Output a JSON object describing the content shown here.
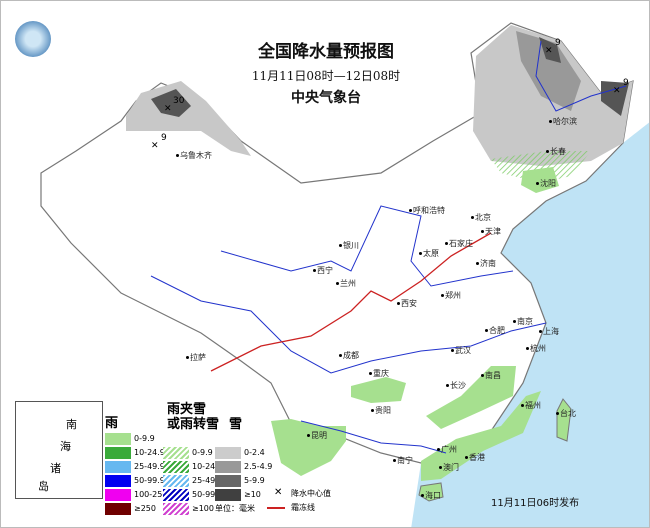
{
  "header": {
    "title": "全国降水量预报图",
    "period": "11月11日08时—12日08时",
    "issuer": "中央气象台",
    "logo": "cma-logo-icon"
  },
  "colors": {
    "sea": "#bfe3f5",
    "rain_light": "#a6e08f",
    "snow_light": "#c8c8c8",
    "snow_mid": "#999999",
    "snow_heavy": "#444444",
    "river": "#2233cc",
    "frost_line": "#cc2222"
  },
  "centers": [
    {
      "label": "30"
    },
    {
      "label": "9"
    },
    {
      "label": "9"
    },
    {
      "label": "9"
    }
  ],
  "cities": [
    "乌鲁木齐",
    "哈尔滨",
    "长春",
    "沈阳",
    "呼和浩特",
    "北京",
    "天津",
    "银川",
    "太原",
    "石家庄",
    "济南",
    "西宁",
    "兰州",
    "西安",
    "郑州",
    "合肥",
    "南京",
    "上海",
    "杭州",
    "武汉",
    "拉萨",
    "成都",
    "重庆",
    "贵阳",
    "长沙",
    "南昌",
    "福州",
    "台北",
    "昆明",
    "南宁",
    "广州",
    "香港",
    "澳门",
    "海口"
  ],
  "inset": {
    "labels": [
      "南",
      "海",
      "诸",
      "岛"
    ]
  },
  "legend": {
    "rain_title": "雨",
    "mixed_title_1": "雨夹雪",
    "mixed_title_2": "或雨转雪",
    "snow_title": "雪",
    "rain": [
      {
        "label": "0-9.9",
        "color": "#a6e08f"
      },
      {
        "label": "10-24.9",
        "color": "#3aaa3a"
      },
      {
        "label": "25-49.9",
        "color": "#66b8f0"
      },
      {
        "label": "50-99.9",
        "color": "#0000f0"
      },
      {
        "label": "100-250",
        "color": "#f000f0"
      },
      {
        "label": "≥250",
        "color": "#700000"
      }
    ],
    "mixed": [
      {
        "label": "0-9.9",
        "color": "#a6e08f"
      },
      {
        "label": "10-24.9",
        "color": "#3aaa3a"
      },
      {
        "label": "25-49.9",
        "color": "#66b8f0"
      },
      {
        "label": "50-99.9",
        "color": "#0000c0"
      },
      {
        "label": "≥100",
        "color": "#d040d0"
      }
    ],
    "snow": [
      {
        "label": "0-2.4",
        "color": "#cccccc"
      },
      {
        "label": "2.5-4.9",
        "color": "#999999"
      },
      {
        "label": "5-9.9",
        "color": "#666666"
      },
      {
        "label": "≥10",
        "color": "#404040"
      }
    ],
    "center_label": "降水中心值",
    "frost_label": "霜冻线",
    "unit": "单位：毫米"
  },
  "issued": "11月11日06时发布"
}
